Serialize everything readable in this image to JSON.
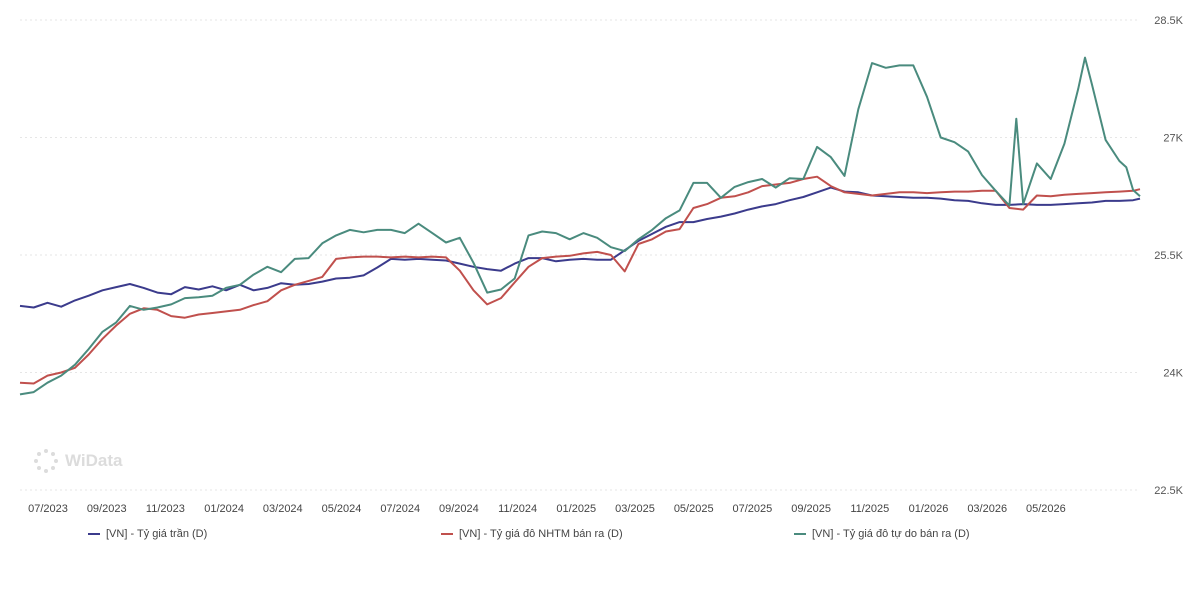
{
  "brand": {
    "name": "WiData"
  },
  "chart_data": {
    "type": "line",
    "x_labels": [
      "07/2023",
      "09/2023",
      "11/2023",
      "01/2024",
      "03/2024",
      "05/2024",
      "07/2024",
      "09/2024",
      "11/2024",
      "01/2025",
      "03/2025",
      "05/2025",
      "07/2025",
      "09/2025",
      "11/2025",
      "01/2026",
      "03/2026",
      "05/2026"
    ],
    "x_range": [
      "06/2023",
      "06/2026"
    ],
    "y_ticks": [
      "22.5K",
      "24K",
      "25.5K",
      "27K",
      "28.5K"
    ],
    "y_tick_values": [
      22500,
      24000,
      25500,
      27000,
      28500
    ],
    "ylim": [
      22500,
      28500
    ],
    "y_axis_side": "right",
    "grid": "horizontal dotted",
    "legend_position": "bottom",
    "series": [
      {
        "name": "[VN] - Tỷ giá trần (D)",
        "color": "#3b3b8c",
        "points": [
          [
            0,
            24850
          ],
          [
            2,
            24830
          ],
          [
            4,
            24890
          ],
          [
            6,
            24840
          ],
          [
            8,
            24920
          ],
          [
            10,
            24980
          ],
          [
            12,
            25050
          ],
          [
            14,
            25090
          ],
          [
            16,
            25130
          ],
          [
            18,
            25080
          ],
          [
            20,
            25020
          ],
          [
            22,
            25000
          ],
          [
            24,
            25090
          ],
          [
            26,
            25060
          ],
          [
            28,
            25100
          ],
          [
            30,
            25050
          ],
          [
            32,
            25120
          ],
          [
            34,
            25050
          ],
          [
            36,
            25080
          ],
          [
            38,
            25140
          ],
          [
            40,
            25120
          ],
          [
            42,
            25130
          ],
          [
            44,
            25160
          ],
          [
            46,
            25200
          ],
          [
            48,
            25210
          ],
          [
            50,
            25240
          ],
          [
            52,
            25340
          ],
          [
            54,
            25450
          ],
          [
            56,
            25440
          ],
          [
            58,
            25450
          ],
          [
            60,
            25440
          ],
          [
            62,
            25430
          ],
          [
            64,
            25390
          ],
          [
            66,
            25350
          ],
          [
            68,
            25320
          ],
          [
            70,
            25300
          ],
          [
            72,
            25390
          ],
          [
            74,
            25460
          ],
          [
            76,
            25460
          ],
          [
            78,
            25420
          ],
          [
            80,
            25440
          ],
          [
            82,
            25450
          ],
          [
            84,
            25440
          ],
          [
            86,
            25440
          ],
          [
            88,
            25560
          ],
          [
            90,
            25680
          ],
          [
            92,
            25770
          ],
          [
            94,
            25860
          ],
          [
            96,
            25920
          ],
          [
            98,
            25920
          ],
          [
            100,
            25960
          ],
          [
            102,
            25990
          ],
          [
            104,
            26030
          ],
          [
            106,
            26080
          ],
          [
            108,
            26120
          ],
          [
            110,
            26150
          ],
          [
            112,
            26200
          ],
          [
            114,
            26240
          ],
          [
            116,
            26300
          ],
          [
            118,
            26360
          ],
          [
            120,
            26310
          ],
          [
            122,
            26300
          ],
          [
            124,
            26260
          ],
          [
            126,
            26250
          ],
          [
            128,
            26240
          ],
          [
            130,
            26230
          ],
          [
            132,
            26230
          ],
          [
            134,
            26220
          ],
          [
            136,
            26200
          ],
          [
            138,
            26190
          ],
          [
            140,
            26160
          ],
          [
            142,
            26140
          ],
          [
            144,
            26140
          ],
          [
            146,
            26150
          ],
          [
            148,
            26140
          ],
          [
            150,
            26140
          ],
          [
            152,
            26150
          ],
          [
            154,
            26160
          ],
          [
            156,
            26170
          ],
          [
            158,
            26190
          ],
          [
            160,
            26190
          ],
          [
            162,
            26200
          ],
          [
            163,
            26220
          ]
        ]
      },
      {
        "name": "[VN] - Tỷ giá đô NHTM bán ra (D)",
        "color": "#c0504d",
        "points": [
          [
            0,
            23870
          ],
          [
            2,
            23860
          ],
          [
            4,
            23960
          ],
          [
            6,
            24000
          ],
          [
            8,
            24060
          ],
          [
            10,
            24230
          ],
          [
            12,
            24430
          ],
          [
            14,
            24600
          ],
          [
            16,
            24750
          ],
          [
            18,
            24820
          ],
          [
            20,
            24800
          ],
          [
            22,
            24720
          ],
          [
            24,
            24700
          ],
          [
            26,
            24740
          ],
          [
            28,
            24760
          ],
          [
            30,
            24780
          ],
          [
            32,
            24800
          ],
          [
            34,
            24860
          ],
          [
            36,
            24910
          ],
          [
            38,
            25050
          ],
          [
            40,
            25120
          ],
          [
            42,
            25170
          ],
          [
            44,
            25220
          ],
          [
            46,
            25450
          ],
          [
            48,
            25470
          ],
          [
            50,
            25480
          ],
          [
            52,
            25480
          ],
          [
            54,
            25470
          ],
          [
            56,
            25480
          ],
          [
            58,
            25470
          ],
          [
            60,
            25480
          ],
          [
            62,
            25470
          ],
          [
            64,
            25300
          ],
          [
            66,
            25050
          ],
          [
            68,
            24870
          ],
          [
            70,
            24950
          ],
          [
            72,
            25150
          ],
          [
            74,
            25350
          ],
          [
            76,
            25460
          ],
          [
            78,
            25480
          ],
          [
            80,
            25490
          ],
          [
            82,
            25520
          ],
          [
            84,
            25540
          ],
          [
            86,
            25500
          ],
          [
            88,
            25290
          ],
          [
            90,
            25640
          ],
          [
            92,
            25700
          ],
          [
            94,
            25800
          ],
          [
            96,
            25830
          ],
          [
            98,
            26100
          ],
          [
            100,
            26150
          ],
          [
            102,
            26230
          ],
          [
            104,
            26250
          ],
          [
            106,
            26300
          ],
          [
            108,
            26380
          ],
          [
            110,
            26400
          ],
          [
            112,
            26420
          ],
          [
            114,
            26470
          ],
          [
            116,
            26500
          ],
          [
            118,
            26380
          ],
          [
            120,
            26300
          ],
          [
            122,
            26280
          ],
          [
            124,
            26260
          ],
          [
            126,
            26280
          ],
          [
            128,
            26300
          ],
          [
            130,
            26300
          ],
          [
            132,
            26290
          ],
          [
            134,
            26300
          ],
          [
            136,
            26310
          ],
          [
            138,
            26310
          ],
          [
            140,
            26320
          ],
          [
            142,
            26320
          ],
          [
            144,
            26100
          ],
          [
            146,
            26080
          ],
          [
            148,
            26260
          ],
          [
            150,
            26250
          ],
          [
            152,
            26270
          ],
          [
            154,
            26280
          ],
          [
            156,
            26290
          ],
          [
            158,
            26300
          ],
          [
            160,
            26310
          ],
          [
            162,
            26320
          ],
          [
            163,
            26340
          ]
        ]
      },
      {
        "name": "[VN] - Tỷ giá đô tự do bán ra (D)",
        "color": "#4a8b7e",
        "points": [
          [
            0,
            23720
          ],
          [
            2,
            23750
          ],
          [
            4,
            23870
          ],
          [
            6,
            23960
          ],
          [
            8,
            24100
          ],
          [
            10,
            24300
          ],
          [
            12,
            24520
          ],
          [
            14,
            24640
          ],
          [
            16,
            24850
          ],
          [
            18,
            24800
          ],
          [
            20,
            24830
          ],
          [
            22,
            24870
          ],
          [
            24,
            24950
          ],
          [
            26,
            24960
          ],
          [
            28,
            24980
          ],
          [
            30,
            25080
          ],
          [
            32,
            25120
          ],
          [
            34,
            25250
          ],
          [
            36,
            25350
          ],
          [
            38,
            25280
          ],
          [
            40,
            25450
          ],
          [
            42,
            25460
          ],
          [
            44,
            25650
          ],
          [
            46,
            25750
          ],
          [
            48,
            25820
          ],
          [
            50,
            25790
          ],
          [
            52,
            25820
          ],
          [
            54,
            25820
          ],
          [
            56,
            25780
          ],
          [
            58,
            25900
          ],
          [
            60,
            25780
          ],
          [
            62,
            25660
          ],
          [
            64,
            25720
          ],
          [
            66,
            25400
          ],
          [
            68,
            25020
          ],
          [
            70,
            25060
          ],
          [
            72,
            25200
          ],
          [
            74,
            25750
          ],
          [
            76,
            25800
          ],
          [
            78,
            25780
          ],
          [
            80,
            25700
          ],
          [
            82,
            25780
          ],
          [
            84,
            25720
          ],
          [
            86,
            25600
          ],
          [
            88,
            25550
          ],
          [
            90,
            25700
          ],
          [
            92,
            25820
          ],
          [
            94,
            25970
          ],
          [
            96,
            26070
          ],
          [
            98,
            26420
          ],
          [
            100,
            26420
          ],
          [
            102,
            26230
          ],
          [
            104,
            26370
          ],
          [
            106,
            26430
          ],
          [
            108,
            26470
          ],
          [
            110,
            26360
          ],
          [
            112,
            26480
          ],
          [
            114,
            26470
          ],
          [
            116,
            26880
          ],
          [
            118,
            26750
          ],
          [
            120,
            26510
          ],
          [
            122,
            27360
          ],
          [
            124,
            27950
          ],
          [
            126,
            27890
          ],
          [
            128,
            27920
          ],
          [
            130,
            27920
          ],
          [
            132,
            27520
          ],
          [
            134,
            27000
          ],
          [
            136,
            26940
          ],
          [
            138,
            26820
          ],
          [
            140,
            26520
          ],
          [
            142,
            26320
          ],
          [
            144,
            26130
          ],
          [
            145,
            27240
          ],
          [
            146,
            26150
          ],
          [
            148,
            26670
          ],
          [
            150,
            26470
          ],
          [
            152,
            26920
          ],
          [
            154,
            27620
          ],
          [
            155,
            28020
          ],
          [
            156,
            27680
          ],
          [
            158,
            26970
          ],
          [
            160,
            26700
          ],
          [
            161,
            26620
          ],
          [
            162,
            26330
          ],
          [
            163,
            26250
          ]
        ]
      }
    ]
  }
}
